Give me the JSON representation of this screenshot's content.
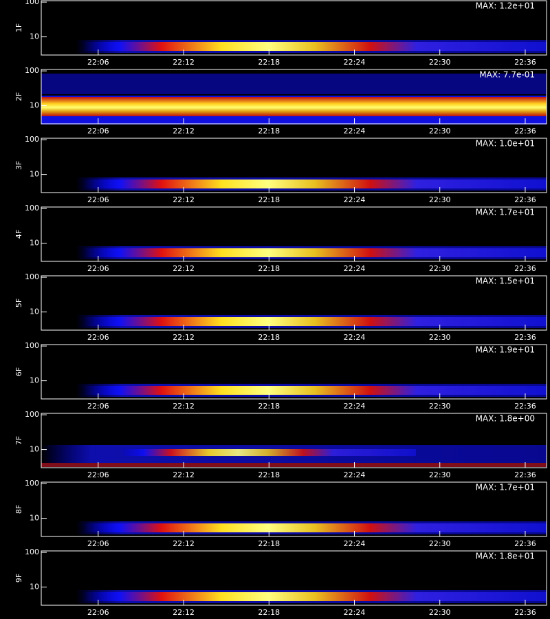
{
  "chart_data": [
    {
      "type": "spectrogram",
      "ylabel": "1F",
      "annotation": "MAX: 1.2e+01",
      "yscale": "log",
      "ylim": [
        3,
        110
      ],
      "yticks": [
        10,
        100
      ],
      "xlim": [
        1322,
        1357.5
      ],
      "xticks": [
        {
          "value": 1326,
          "label": "22:06"
        },
        {
          "value": 1332,
          "label": "22:12"
        },
        {
          "value": 1338,
          "label": "22:18"
        },
        {
          "value": 1344,
          "label": "22:24"
        },
        {
          "value": 1350,
          "label": "22:30"
        },
        {
          "value": 1356,
          "label": "22:36"
        }
      ]
    },
    {
      "type": "spectrogram",
      "ylabel": "2F",
      "annotation": "MAX: 7.7e-01",
      "yscale": "log",
      "ylim": [
        3,
        110
      ],
      "yticks": [
        10,
        100
      ],
      "xlim": [
        1322,
        1357.5
      ],
      "xticks": [
        {
          "value": 1326,
          "label": "22:06"
        },
        {
          "value": 1332,
          "label": "22:12"
        },
        {
          "value": 1338,
          "label": "22:18"
        },
        {
          "value": 1344,
          "label": "22:24"
        },
        {
          "value": 1350,
          "label": "22:30"
        },
        {
          "value": 1356,
          "label": "22:36"
        }
      ]
    },
    {
      "type": "spectrogram",
      "ylabel": "3F",
      "annotation": "MAX: 1.0e+01",
      "yscale": "log",
      "ylim": [
        3,
        110
      ],
      "yticks": [
        10,
        100
      ],
      "xlim": [
        1322,
        1357.5
      ],
      "xticks": [
        {
          "value": 1326,
          "label": "22:06"
        },
        {
          "value": 1332,
          "label": "22:12"
        },
        {
          "value": 1338,
          "label": "22:18"
        },
        {
          "value": 1344,
          "label": "22:24"
        },
        {
          "value": 1350,
          "label": "22:30"
        },
        {
          "value": 1356,
          "label": "22:36"
        }
      ]
    },
    {
      "type": "spectrogram",
      "ylabel": "4F",
      "annotation": "MAX: 1.7e+01",
      "yscale": "log",
      "ylim": [
        3,
        110
      ],
      "yticks": [
        10,
        100
      ],
      "xlim": [
        1322,
        1357.5
      ],
      "xticks": [
        {
          "value": 1326,
          "label": "22:06"
        },
        {
          "value": 1332,
          "label": "22:12"
        },
        {
          "value": 1338,
          "label": "22:18"
        },
        {
          "value": 1344,
          "label": "22:24"
        },
        {
          "value": 1350,
          "label": "22:30"
        },
        {
          "value": 1356,
          "label": "22:36"
        }
      ]
    },
    {
      "type": "spectrogram",
      "ylabel": "5F",
      "annotation": "MAX: 1.5e+01",
      "yscale": "log",
      "ylim": [
        3,
        110
      ],
      "yticks": [
        10,
        100
      ],
      "xlim": [
        1322,
        1357.5
      ],
      "xticks": [
        {
          "value": 1326,
          "label": "22:06"
        },
        {
          "value": 1332,
          "label": "22:12"
        },
        {
          "value": 1338,
          "label": "22:18"
        },
        {
          "value": 1344,
          "label": "22:24"
        },
        {
          "value": 1350,
          "label": "22:30"
        },
        {
          "value": 1356,
          "label": "22:36"
        }
      ]
    },
    {
      "type": "spectrogram",
      "ylabel": "6F",
      "annotation": "MAX: 1.9e+01",
      "yscale": "log",
      "ylim": [
        3,
        110
      ],
      "yticks": [
        10,
        100
      ],
      "xlim": [
        1322,
        1357.5
      ],
      "xticks": [
        {
          "value": 1326,
          "label": "22:06"
        },
        {
          "value": 1332,
          "label": "22:12"
        },
        {
          "value": 1338,
          "label": "22:18"
        },
        {
          "value": 1344,
          "label": "22:24"
        },
        {
          "value": 1350,
          "label": "22:30"
        },
        {
          "value": 1356,
          "label": "22:36"
        }
      ]
    },
    {
      "type": "spectrogram",
      "ylabel": "7F",
      "annotation": "MAX: 1.8e+00",
      "yscale": "log",
      "ylim": [
        3,
        110
      ],
      "yticks": [
        10,
        100
      ],
      "xlim": [
        1322,
        1357.5
      ],
      "xticks": [
        {
          "value": 1326,
          "label": "22:06"
        },
        {
          "value": 1332,
          "label": "22:12"
        },
        {
          "value": 1338,
          "label": "22:18"
        },
        {
          "value": 1344,
          "label": "22:24"
        },
        {
          "value": 1350,
          "label": "22:30"
        },
        {
          "value": 1356,
          "label": "22:36"
        }
      ]
    },
    {
      "type": "spectrogram",
      "ylabel": "8F",
      "annotation": "MAX: 1.7e+01",
      "yscale": "log",
      "ylim": [
        3,
        110
      ],
      "yticks": [
        10,
        100
      ],
      "xlim": [
        1322,
        1357.5
      ],
      "xticks": [
        {
          "value": 1326,
          "label": "22:06"
        },
        {
          "value": 1332,
          "label": "22:12"
        },
        {
          "value": 1338,
          "label": "22:18"
        },
        {
          "value": 1344,
          "label": "22:24"
        },
        {
          "value": 1350,
          "label": "22:30"
        },
        {
          "value": 1356,
          "label": "22:36"
        }
      ]
    },
    {
      "type": "spectrogram",
      "ylabel": "9F",
      "annotation": "MAX: 1.8e+01",
      "yscale": "log",
      "ylim": [
        3,
        110
      ],
      "yticks": [
        10,
        100
      ],
      "xlim": [
        1322,
        1357.5
      ],
      "xticks": [
        {
          "value": 1326,
          "label": "22:06"
        },
        {
          "value": 1332,
          "label": "22:12"
        },
        {
          "value": 1338,
          "label": "22:18"
        },
        {
          "value": 1344,
          "label": "22:24"
        },
        {
          "value": 1350,
          "label": "22:30"
        },
        {
          "value": 1356,
          "label": "22:36"
        }
      ]
    }
  ]
}
